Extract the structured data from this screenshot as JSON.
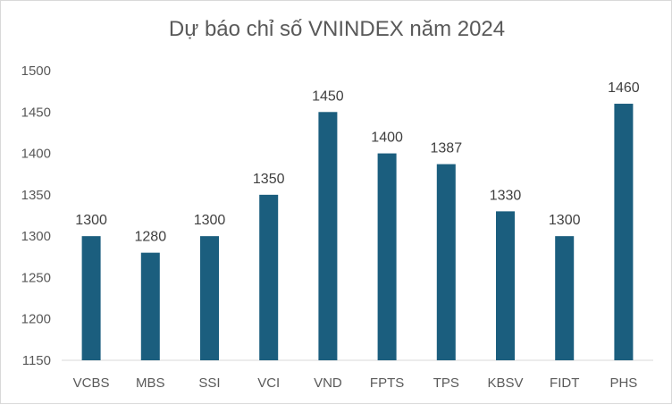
{
  "chart_data": {
    "type": "bar",
    "title": "Dự báo chỉ số VNINDEX năm 2024",
    "categories": [
      "VCBS",
      "MBS",
      "SSI",
      "VCI",
      "VND",
      "FPTS",
      "TPS",
      "KBSV",
      "FIDT",
      "PHS"
    ],
    "values": [
      1300,
      1280,
      1300,
      1350,
      1450,
      1400,
      1387,
      1330,
      1300,
      1460
    ],
    "data_labels": [
      "1300",
      "1280",
      "1300",
      "1350",
      "1450",
      "1400",
      "1387",
      "1330",
      "1300",
      "1460"
    ],
    "ylim": [
      1150,
      1500
    ],
    "yticks": [
      "1150",
      "1200",
      "1250",
      "1300",
      "1350",
      "1400",
      "1450",
      "1500"
    ],
    "xlabel": "",
    "ylabel": "",
    "grid": false,
    "legend": "none",
    "bar_color": "#1B5E7E",
    "axis_color": "#d9d9d9"
  }
}
